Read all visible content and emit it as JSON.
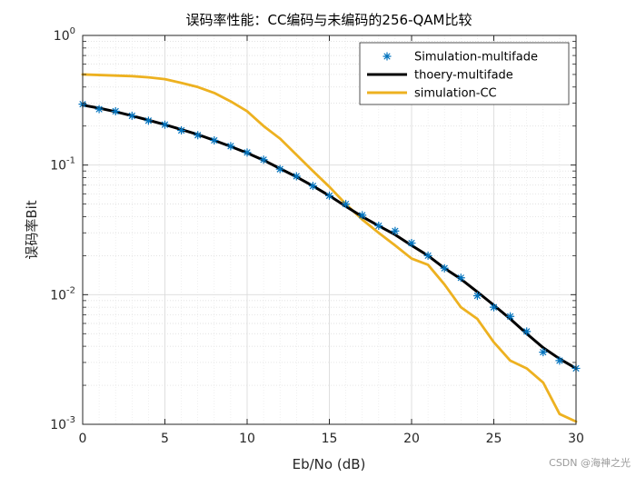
{
  "chart_data": {
    "type": "line",
    "title": "误码率性能：CC编码与未编码的256-QAM比较",
    "xlabel": "Eb/No (dB)",
    "ylabel": "误码率Bit",
    "xlim": [
      0,
      30
    ],
    "ylim": [
      0.001,
      1
    ],
    "yscale": "log",
    "grid": true,
    "minor_grid": true,
    "legend_position": "top-right",
    "xticks": [
      0,
      5,
      10,
      15,
      20,
      25,
      30
    ],
    "x_tick_labels": [
      "0",
      "5",
      "10",
      "15",
      "20",
      "25",
      "30"
    ],
    "yticks": [
      {
        "value": 1,
        "base": "10",
        "exp": "0"
      },
      {
        "value": 0.1,
        "base": "10",
        "exp": "-1"
      },
      {
        "value": 0.01,
        "base": "10",
        "exp": "-2"
      },
      {
        "value": 0.001,
        "base": "10",
        "exp": "-3"
      }
    ],
    "series": [
      {
        "name": "Simulation-multifade",
        "style": "marker",
        "marker": "*",
        "color": "#0072BD",
        "x": [
          0,
          1,
          2,
          3,
          4,
          5,
          6,
          7,
          8,
          9,
          10,
          11,
          12,
          13,
          14,
          15,
          16,
          17,
          18,
          19,
          20,
          21,
          22,
          23,
          24,
          25,
          26,
          27,
          28,
          29,
          30
        ],
        "y": [
          0.295,
          0.27,
          0.26,
          0.24,
          0.22,
          0.205,
          0.185,
          0.17,
          0.155,
          0.14,
          0.125,
          0.11,
          0.093,
          0.082,
          0.069,
          0.058,
          0.05,
          0.041,
          0.034,
          0.031,
          0.025,
          0.02,
          0.016,
          0.0135,
          0.0098,
          0.008,
          0.0068,
          0.0052,
          0.0036,
          0.0031,
          0.0027
        ]
      },
      {
        "name": "thoery-multifade",
        "style": "line",
        "color": "#000000",
        "x": [
          0,
          1,
          2,
          3,
          4,
          5,
          6,
          7,
          8,
          9,
          10,
          11,
          12,
          13,
          14,
          15,
          16,
          17,
          18,
          19,
          20,
          21,
          22,
          23,
          24,
          25,
          26,
          27,
          28,
          29,
          30
        ],
        "y": [
          0.29,
          0.275,
          0.258,
          0.24,
          0.222,
          0.205,
          0.188,
          0.172,
          0.155,
          0.139,
          0.124,
          0.109,
          0.094,
          0.081,
          0.069,
          0.058,
          0.048,
          0.04,
          0.034,
          0.029,
          0.024,
          0.02,
          0.016,
          0.0132,
          0.0105,
          0.0083,
          0.0065,
          0.005,
          0.0039,
          0.0032,
          0.0027
        ]
      },
      {
        "name": "simulation-CC",
        "style": "line",
        "color": "#EDB120",
        "x": [
          0,
          1,
          2,
          3,
          4,
          5,
          6,
          7,
          8,
          9,
          10,
          11,
          12,
          13,
          14,
          15,
          16,
          17,
          18,
          19,
          20,
          21,
          22,
          23,
          24,
          25,
          26,
          27,
          28,
          29,
          30
        ],
        "y": [
          0.5,
          0.495,
          0.49,
          0.485,
          0.475,
          0.46,
          0.43,
          0.4,
          0.36,
          0.31,
          0.26,
          0.2,
          0.16,
          0.12,
          0.09,
          0.068,
          0.05,
          0.038,
          0.03,
          0.024,
          0.019,
          0.017,
          0.012,
          0.008,
          0.0065,
          0.0043,
          0.0031,
          0.0027,
          0.0021,
          0.0012,
          0.00105
        ]
      }
    ]
  },
  "watermark": "CSDN @海神之光"
}
